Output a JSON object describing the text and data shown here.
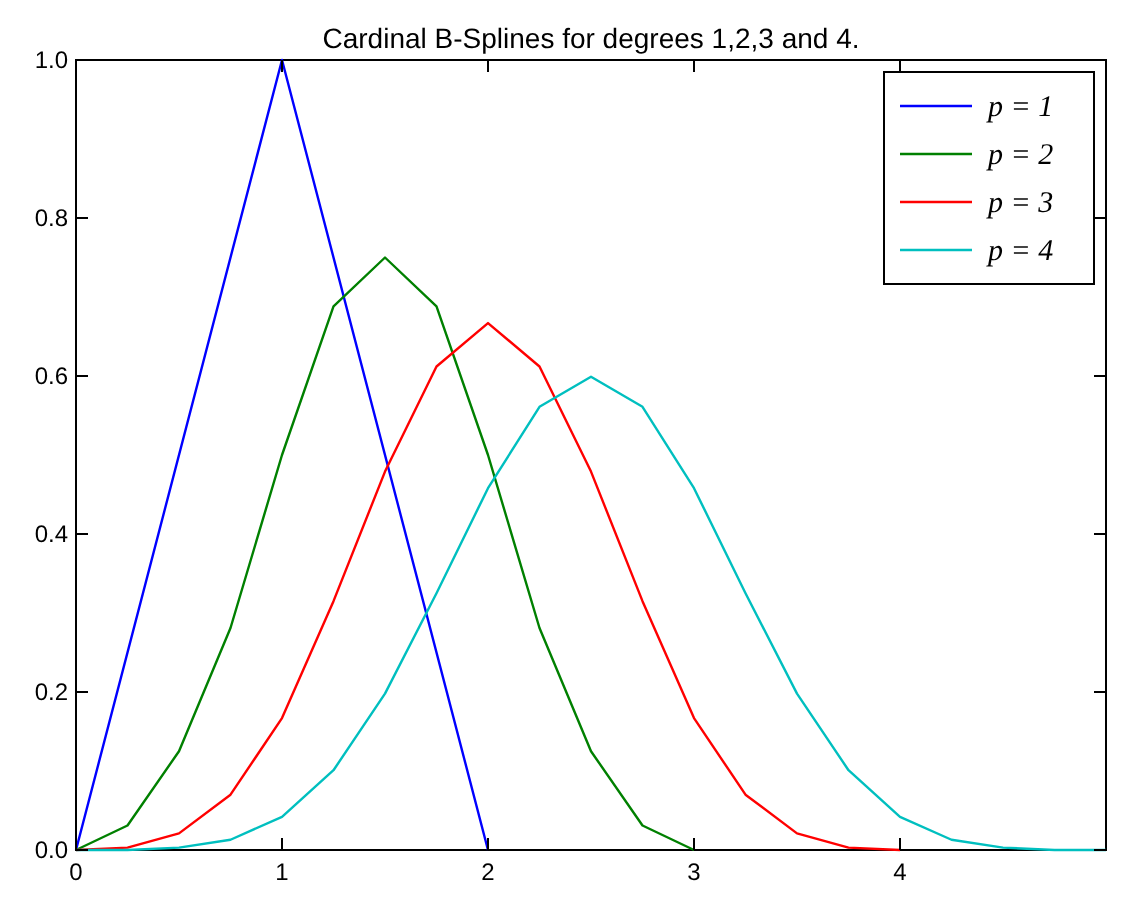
{
  "chart_data": {
    "type": "line",
    "title": "Cardinal B-Splines for degrees 1,2,3 and 4.",
    "xlim": [
      0,
      5
    ],
    "xticks": [
      0,
      1,
      2,
      3,
      4
    ],
    "ylim": [
      0,
      1
    ],
    "yticks": [
      {
        "value": 0,
        "label": "0.0"
      },
      0.2,
      0.4,
      0.6,
      0.8,
      {
        "value": 1,
        "label": "1.0"
      }
    ],
    "legend": "top right",
    "grid": false,
    "marker": "none",
    "line_style": "solid",
    "series": [
      {
        "name": "p = 1",
        "color": "#0000ff",
        "x": [
          0,
          1,
          2
        ],
        "values": [
          0,
          1,
          0
        ]
      },
      {
        "name": "p = 2",
        "color": "#008000",
        "x": [
          0,
          0.25,
          0.5,
          0.75,
          1,
          1.25,
          1.5,
          1.75,
          2,
          2.25,
          2.5,
          2.75,
          3
        ],
        "values": [
          0,
          0.031,
          0.125,
          0.281,
          0.5,
          0.688,
          0.75,
          0.688,
          0.5,
          0.281,
          0.125,
          0.031,
          0
        ]
      },
      {
        "name": "p = 3",
        "color": "#ff0000",
        "x": [
          0,
          0.25,
          0.5,
          0.75,
          1,
          1.25,
          1.5,
          1.75,
          2,
          2.25,
          2.5,
          2.75,
          3,
          3.25,
          3.5,
          3.75,
          4
        ],
        "values": [
          0,
          0.003,
          0.021,
          0.07,
          0.167,
          0.315,
          0.479,
          0.612,
          0.667,
          0.612,
          0.479,
          0.315,
          0.167,
          0.07,
          0.021,
          0.003,
          0
        ]
      },
      {
        "name": "p = 4",
        "color": "#00bfbf",
        "x": [
          0,
          0.25,
          0.5,
          0.75,
          1,
          1.25,
          1.5,
          1.75,
          2,
          2.25,
          2.5,
          2.75,
          3,
          3.25,
          3.5,
          3.75,
          4,
          4.25,
          4.5,
          4.75,
          5
        ],
        "values": [
          0,
          0,
          0.003,
          0.013,
          0.042,
          0.101,
          0.198,
          0.325,
          0.458,
          0.561,
          0.599,
          0.561,
          0.458,
          0.325,
          0.198,
          0.101,
          0.042,
          0.013,
          0.003,
          0,
          0
        ]
      }
    ]
  }
}
